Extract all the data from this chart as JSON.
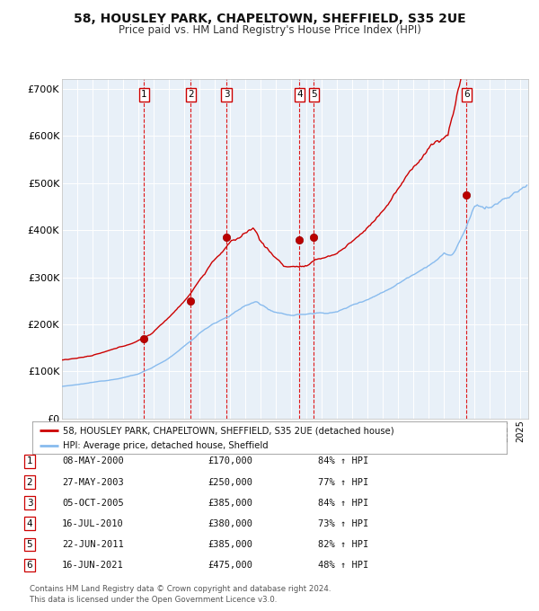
{
  "title1": "58, HOUSLEY PARK, CHAPELTOWN, SHEFFIELD, S35 2UE",
  "title2": "Price paid vs. HM Land Registry's House Price Index (HPI)",
  "xlim_start": 1995.0,
  "xlim_end": 2025.5,
  "ylim_min": 0,
  "ylim_max": 720000,
  "plot_bg": "#e8f0f8",
  "sale_color": "#cc0000",
  "hpi_color": "#88bbee",
  "sale_label": "58, HOUSLEY PARK, CHAPELTOWN, SHEFFIELD, S35 2UE (detached house)",
  "hpi_label": "HPI: Average price, detached house, Sheffield",
  "transactions": [
    {
      "num": 1,
      "date_str": "08-MAY-2000",
      "date_x": 2000.36,
      "price": 170000,
      "pct": "84%"
    },
    {
      "num": 2,
      "date_str": "27-MAY-2003",
      "date_x": 2003.41,
      "price": 250000,
      "pct": "77%"
    },
    {
      "num": 3,
      "date_str": "05-OCT-2005",
      "date_x": 2005.76,
      "price": 385000,
      "pct": "84%"
    },
    {
      "num": 4,
      "date_str": "16-JUL-2010",
      "date_x": 2010.54,
      "price": 380000,
      "pct": "73%"
    },
    {
      "num": 5,
      "date_str": "22-JUN-2011",
      "date_x": 2011.47,
      "price": 385000,
      "pct": "82%"
    },
    {
      "num": 6,
      "date_str": "16-JUN-2021",
      "date_x": 2021.46,
      "price": 475000,
      "pct": "48%"
    }
  ],
  "footer1": "Contains HM Land Registry data © Crown copyright and database right 2024.",
  "footer2": "This data is licensed under the Open Government Licence v3.0."
}
